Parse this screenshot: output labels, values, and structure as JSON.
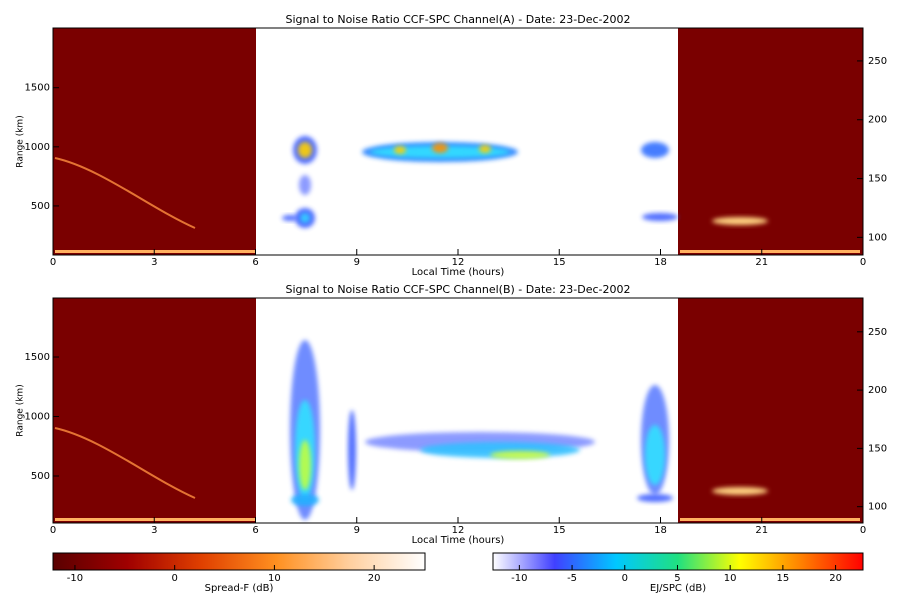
{
  "chart_data": [
    {
      "type": "heatmap",
      "title": "Signal to Noise Ratio CCF-SPC Channel(A) - Date: 23-Dec-2002",
      "xlabel": "Local Time (hours)",
      "ylabel": "Range (km)",
      "xlim": [
        0,
        24
      ],
      "xticks": [
        0,
        3,
        6,
        9,
        12,
        15,
        18,
        21,
        {
          "value": 24,
          "label": "0"
        }
      ],
      "ylim": [
        85,
        2005
      ],
      "yticks": [
        500,
        1000,
        1500
      ],
      "y2lim": [
        85,
        278
      ],
      "y2ticks": [
        100,
        150,
        200,
        250
      ]
    },
    {
      "type": "heatmap",
      "title": "Signal to Noise Ratio CCF-SPC Channel(B) - Date: 23-Dec-2002",
      "xlabel": "Local Time (hours)",
      "ylabel": "Range (km)",
      "xlim": [
        0,
        24
      ],
      "xticks": [
        0,
        3,
        6,
        9,
        12,
        15,
        18,
        21,
        {
          "value": 24,
          "label": "0"
        }
      ],
      "ylim": [
        105,
        1996
      ],
      "yticks": [
        500,
        1000,
        1500
      ],
      "y2lim": [
        86,
        279
      ],
      "y2ticks": [
        100,
        150,
        200,
        250
      ]
    },
    {
      "type": "colorbar",
      "xlabel": "Spread-F (dB)",
      "xlim": [
        -12.2,
        25.1
      ],
      "xticks": [
        -10,
        0,
        10,
        20
      ],
      "colors": [
        "#5a0000",
        "#a00000",
        "#e04000",
        "#ff9020",
        "#ffd0a0",
        "#ffffff"
      ]
    },
    {
      "type": "colorbar",
      "xlabel": "EJ/SPC (dB)",
      "xlim": [
        -12.5,
        22.6
      ],
      "xticks": [
        -10,
        -5,
        0,
        5,
        10,
        15,
        20
      ],
      "colors": [
        "#ffffff",
        "#4040ff",
        "#00c8ff",
        "#20e080",
        "#ffff00",
        "#ff8000",
        "#ff0000"
      ]
    }
  ]
}
